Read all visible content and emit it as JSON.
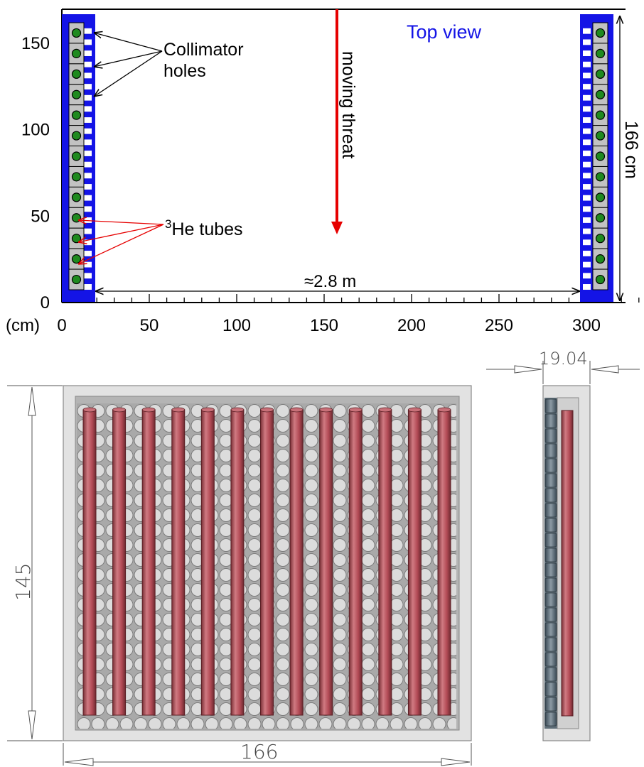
{
  "top_view": {
    "title": "Top view",
    "units_label": "(cm)",
    "x_ticks": [
      "0",
      "50",
      "100",
      "150",
      "200",
      "250",
      "300"
    ],
    "y_ticks": [
      "0",
      "50",
      "100",
      "150"
    ],
    "collimator_label_line1": "Collimator",
    "collimator_label_line2": "holes",
    "he_sup": "3",
    "he_label": "He tubes",
    "threat_label": "moving threat",
    "height_label": "166 cm",
    "gap_label": "≈2.8 m",
    "colors": {
      "shield": "#1414e6",
      "tube": "#1f8a1f",
      "threat": "#e60000",
      "title": "#1414e6"
    }
  },
  "front_view": {
    "height_dim": "145",
    "width_dim": "166",
    "tube_count": 13,
    "colors": {
      "tube": "#b85560",
      "panel": "#c8c8c8"
    }
  },
  "side_view": {
    "depth_dim": "19.04"
  }
}
